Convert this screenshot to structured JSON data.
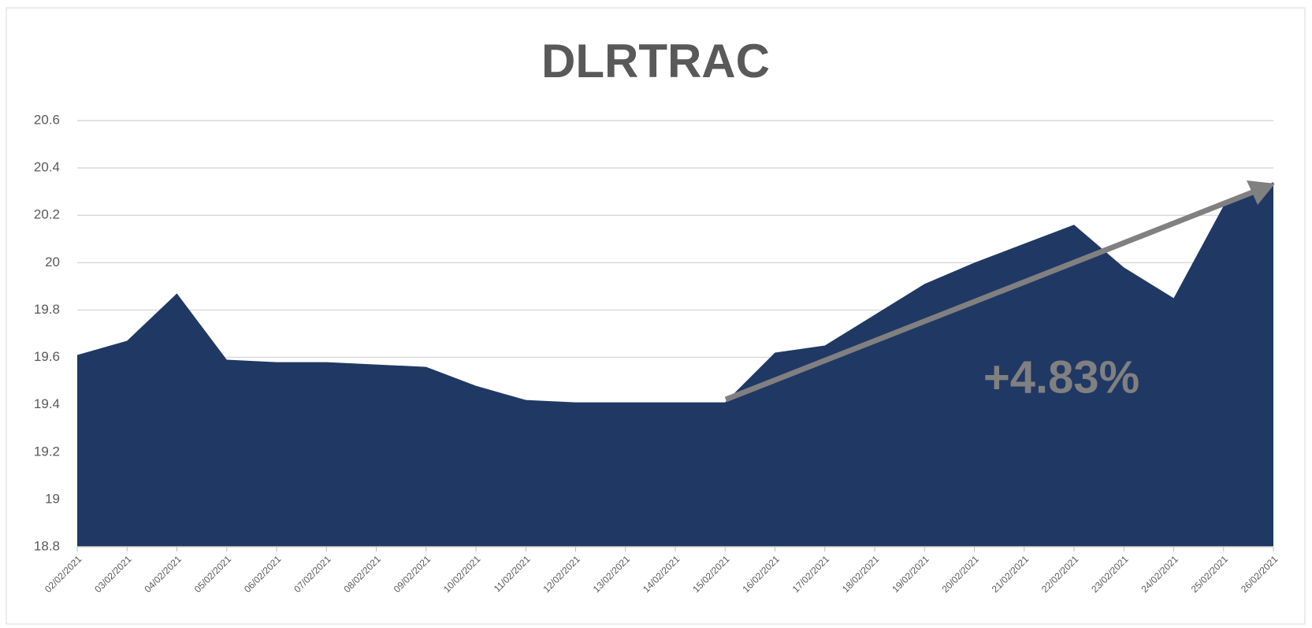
{
  "chart_data": {
    "type": "area",
    "title": "DLRTRAC",
    "categories": [
      "02/02/2021",
      "03/02/2021",
      "04/02/2021",
      "05/02/2021",
      "06/02/2021",
      "07/02/2021",
      "08/02/2021",
      "09/02/2021",
      "10/02/2021",
      "11/02/2021",
      "12/02/2021",
      "13/02/2021",
      "14/02/2021",
      "15/02/2021",
      "16/02/2021",
      "17/02/2021",
      "18/02/2021",
      "19/02/2021",
      "20/02/2021",
      "21/02/2021",
      "22/02/2021",
      "23/02/2021",
      "24/02/2021",
      "25/02/2021",
      "26/02/2021"
    ],
    "values": [
      19.61,
      19.67,
      19.87,
      19.59,
      19.58,
      19.58,
      19.57,
      19.56,
      19.48,
      19.42,
      19.41,
      19.41,
      19.41,
      19.41,
      19.62,
      19.65,
      19.78,
      19.91,
      20.0,
      20.08,
      20.16,
      19.98,
      19.85,
      20.24,
      20.34
    ],
    "color": "#203864",
    "ylim": [
      18.8,
      20.6
    ],
    "yticks": [
      18.8,
      19,
      19.2,
      19.4,
      19.6,
      19.8,
      20,
      20.2,
      20.4,
      20.6
    ],
    "grid": true,
    "annotation": "+4.83%"
  }
}
